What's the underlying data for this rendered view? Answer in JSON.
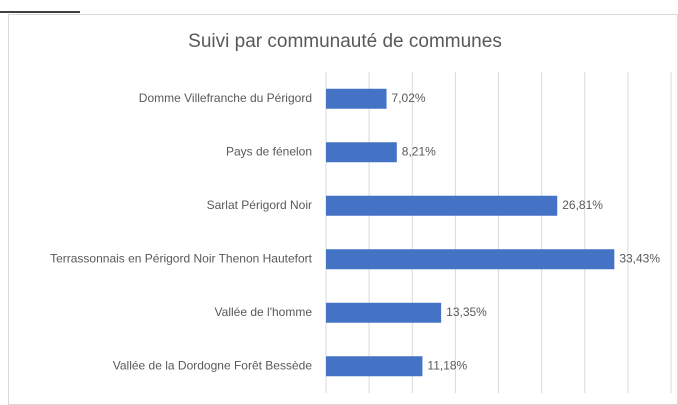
{
  "chart_data": {
    "type": "bar",
    "orientation": "horizontal",
    "title": "Suivi par communauté de communes",
    "categories": [
      "Domme Villefranche du Périgord",
      "Pays de fénelon",
      "Sarlat Périgord Noir",
      "Terrassonnais en Périgord Noir Thenon Hautefort",
      "Vallée de l'homme",
      "Vallée de la Dordogne Forêt Bessède"
    ],
    "values": [
      7.02,
      8.21,
      26.81,
      33.43,
      13.35,
      11.18
    ],
    "value_labels": [
      "7,02%",
      "8,21%",
      "26,81%",
      "33,43%",
      "13,35%",
      "11,18%"
    ],
    "color": "#4472c4",
    "xlim": [
      0,
      40
    ],
    "xticks": [
      0,
      5,
      10,
      15,
      20,
      25,
      30,
      35,
      40
    ],
    "grid": true
  }
}
